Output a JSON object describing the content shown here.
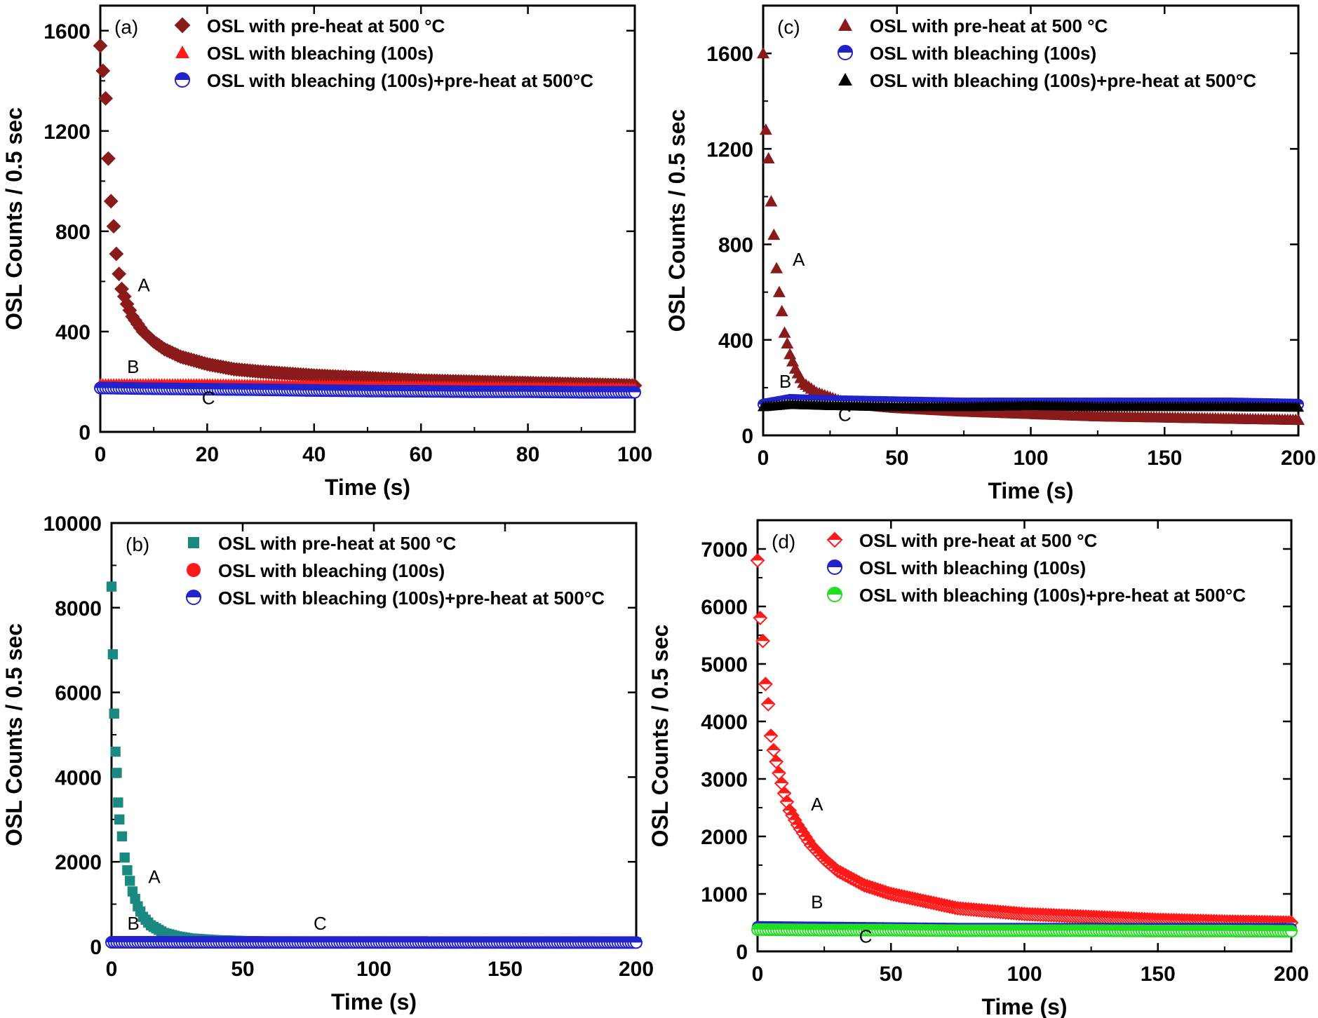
{
  "chart_data": [
    {
      "type": "scatter",
      "panel_label": "(a)",
      "xlabel": "Time (s)",
      "ylabel": "OSL Counts / 0.5 sec",
      "xlim": [
        0,
        100
      ],
      "ylim": [
        0,
        1700
      ],
      "xticks": [
        0,
        20,
        40,
        60,
        80,
        100
      ],
      "yticks": [
        0,
        400,
        800,
        1200,
        1600
      ],
      "legend_position": "top-left",
      "series": [
        {
          "name": "OSL with  pre-heat at 500 °C",
          "marker": "diamond",
          "color": "#8b1a1a",
          "x": [
            0,
            0.5,
            1,
            1.5,
            2,
            2.5,
            3,
            3.5,
            4,
            5,
            6,
            8,
            10,
            12,
            15,
            20,
            25,
            30,
            40,
            50,
            60,
            70,
            80,
            90,
            100
          ],
          "y": [
            1540,
            1440,
            1330,
            1090,
            920,
            820,
            710,
            630,
            570,
            510,
            460,
            400,
            360,
            330,
            300,
            270,
            250,
            240,
            225,
            215,
            205,
            200,
            195,
            190,
            185
          ]
        },
        {
          "name": "OSL with bleaching (100s)",
          "marker": "triangle",
          "color": "#ff1a1a",
          "x": [
            0,
            10,
            20,
            30,
            40,
            50,
            60,
            70,
            80,
            90,
            100
          ],
          "y": [
            195,
            195,
            195,
            192,
            190,
            188,
            186,
            184,
            182,
            180,
            178
          ]
        },
        {
          "name": "OSL with bleaching (100s)+pre-heat at 500°C",
          "marker": "half-circle",
          "color": "#2222cc",
          "x": [
            0,
            10,
            20,
            30,
            40,
            50,
            60,
            70,
            80,
            90,
            100
          ],
          "y": [
            175,
            172,
            170,
            168,
            165,
            163,
            162,
            160,
            160,
            158,
            158
          ]
        }
      ],
      "annotations": [
        {
          "text": "A",
          "x": 7,
          "y": 560
        },
        {
          "text": "B",
          "x": 5,
          "y": 235
        },
        {
          "text": "C",
          "x": 19,
          "y": 110
        }
      ]
    },
    {
      "type": "scatter",
      "panel_label": "(b)",
      "xlabel": "Time (s)",
      "ylabel": "OSL Counts / 0.5 sec",
      "xlim": [
        0,
        200
      ],
      "ylim": [
        0,
        10000
      ],
      "xticks": [
        0,
        50,
        100,
        150,
        200
      ],
      "yticks": [
        0,
        2000,
        4000,
        6000,
        8000,
        10000
      ],
      "legend_position": "top-left",
      "series": [
        {
          "name": "OSL with  pre-heat at 500 °C",
          "marker": "square",
          "color": "#1a8a80",
          "x": [
            0,
            0.5,
            1,
            1.5,
            2,
            2.5,
            3,
            4,
            5,
            6,
            8,
            10,
            12,
            15,
            20,
            25,
            30,
            40,
            50,
            60,
            80,
            100,
            150,
            200
          ],
          "y": [
            8500,
            6900,
            5500,
            4600,
            4100,
            3400,
            3000,
            2600,
            2100,
            1800,
            1300,
            950,
            700,
            500,
            320,
            240,
            190,
            150,
            130,
            120,
            110,
            105,
            100,
            100
          ]
        },
        {
          "name": "OSL with bleaching (100s)",
          "marker": "circle",
          "color": "#ff1a1a",
          "x": [
            0,
            25,
            50,
            75,
            100,
            125,
            150,
            175,
            200
          ],
          "y": [
            130,
            128,
            126,
            125,
            124,
            123,
            122,
            121,
            120
          ]
        },
        {
          "name": "OSL with bleaching (100s)+pre-heat at 500°C",
          "marker": "half-circle",
          "color": "#2222cc",
          "x": [
            0,
            25,
            50,
            75,
            100,
            125,
            150,
            175,
            200
          ],
          "y": [
            100,
            98,
            96,
            95,
            95,
            94,
            94,
            93,
            93
          ]
        }
      ],
      "annotations": [
        {
          "text": "A",
          "x": 14,
          "y": 1500
        },
        {
          "text": "B",
          "x": 6,
          "y": 400
        },
        {
          "text": "C",
          "x": 77,
          "y": 400
        }
      ]
    },
    {
      "type": "scatter",
      "panel_label": "(c)",
      "xlabel": "Time (s)",
      "ylabel": "OSL Counts / 0.5 sec",
      "xlim": [
        0,
        200
      ],
      "ylim": [
        0,
        1800
      ],
      "xticks": [
        0,
        50,
        100,
        150,
        200
      ],
      "yticks": [
        0,
        400,
        800,
        1200,
        1600
      ],
      "legend_position": "top-left",
      "series": [
        {
          "name": "OSL with  pre-heat at 500 °C",
          "marker": "triangle",
          "color": "#8b1a1a",
          "x": [
            0,
            1,
            2,
            3,
            4,
            5,
            6,
            7,
            8,
            10,
            12,
            15,
            20,
            25,
            30,
            40,
            50,
            75,
            100,
            125,
            150,
            175,
            200
          ],
          "y": [
            1600,
            1280,
            1160,
            980,
            840,
            700,
            600,
            520,
            430,
            340,
            280,
            220,
            180,
            160,
            140,
            125,
            115,
            100,
            90,
            80,
            75,
            70,
            65
          ]
        },
        {
          "name": "OSL with bleaching (100s)",
          "marker": "half-circle",
          "color": "#2222cc",
          "x": [
            0,
            10,
            25,
            50,
            75,
            100,
            125,
            150,
            175,
            200
          ],
          "y": [
            130,
            150,
            145,
            140,
            135,
            135,
            135,
            135,
            135,
            130
          ]
        },
        {
          "name": "OSL with bleaching (100s)+pre-heat at 500°C",
          "marker": "triangle",
          "color": "#000000",
          "x": [
            0,
            10,
            25,
            50,
            75,
            100,
            125,
            150,
            175,
            200
          ],
          "y": [
            120,
            130,
            125,
            120,
            120,
            125,
            120,
            120,
            120,
            118
          ]
        }
      ],
      "annotations": [
        {
          "text": "A",
          "x": 11,
          "y": 710
        },
        {
          "text": "B",
          "x": 6,
          "y": 200
        },
        {
          "text": "C",
          "x": 28,
          "y": 60
        }
      ]
    },
    {
      "type": "scatter",
      "panel_label": "(d)",
      "xlabel": "Time (s)",
      "ylabel": "OSL Counts / 0.5 sec",
      "xlim": [
        0,
        200
      ],
      "ylim": [
        0,
        7500
      ],
      "xticks": [
        0,
        50,
        100,
        150,
        200
      ],
      "yticks": [
        0,
        1000,
        2000,
        3000,
        4000,
        5000,
        6000,
        7000
      ],
      "legend_position": "top-left",
      "series": [
        {
          "name": "OSL with  pre-heat at 500 °C",
          "marker": "half-diamond",
          "color": "#ff1a1a",
          "x": [
            0,
            1,
            2,
            3,
            4,
            5,
            6,
            8,
            10,
            12,
            15,
            20,
            25,
            30,
            40,
            50,
            60,
            75,
            100,
            125,
            150,
            175,
            200
          ],
          "y": [
            6800,
            5800,
            5400,
            4650,
            4300,
            3750,
            3500,
            3100,
            2750,
            2450,
            2200,
            1850,
            1600,
            1400,
            1150,
            1000,
            900,
            750,
            650,
            600,
            550,
            520,
            500
          ]
        },
        {
          "name": "OSL with bleaching (100s)",
          "marker": "half-circle",
          "color": "#2222cc",
          "x": [
            0,
            25,
            50,
            75,
            100,
            125,
            150,
            175,
            200
          ],
          "y": [
            430,
            420,
            410,
            400,
            400,
            400,
            400,
            400,
            400
          ]
        },
        {
          "name": "OSL with bleaching (100s)+pre-heat at 500°C",
          "marker": "half-circle",
          "color": "#22dd22",
          "x": [
            0,
            25,
            50,
            75,
            100,
            125,
            150,
            175,
            200
          ],
          "y": [
            380,
            370,
            370,
            360,
            360,
            360,
            355,
            355,
            350
          ]
        }
      ],
      "annotations": [
        {
          "text": "A",
          "x": 20,
          "y": 2450
        },
        {
          "text": "B",
          "x": 20,
          "y": 750
        },
        {
          "text": "C",
          "x": 38,
          "y": 150
        }
      ]
    }
  ]
}
